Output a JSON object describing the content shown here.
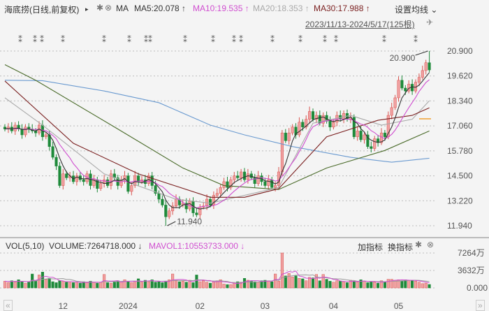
{
  "header": {
    "title": "海底捞(日线,前复权)",
    "arrow": "▸",
    "ma_label": "MA",
    "ma5": "MA5:20.078 ↑",
    "ma10": "MA10:19.535 ↑",
    "ma20": "MA20:18.353 ↑",
    "ma30": "MA30:17.988 ↑",
    "settings": "设置均线 ⌄",
    "range": "2023/11/13-2024/5/17(125根)"
  },
  "vol_header": {
    "label": "VOL(5,10)",
    "volume": "VOLUME:7264718.000 ↓",
    "mavol": "MAVOL1:10553733.000 ↓",
    "add": "加指标",
    "switch": "换指标"
  },
  "colors": {
    "up": "#f0a0a0",
    "up_border": "#d9534f",
    "down": "#1e8a3a",
    "ma5": "#333333",
    "ma10": "#d04fd0",
    "ma20": "#aaaaaa",
    "ma30": "#7a1f1f",
    "ma60": "#4a6b2a",
    "ma120": "#6a9ad0"
  },
  "nav": {
    "prev": "«",
    "next": "»"
  },
  "chart_data": {
    "type": "candlestick",
    "title": "海底捞(日线,前复权)",
    "ylim": [
      11.94,
      20.9
    ],
    "yticks": [
      "20.900",
      "19.620",
      "18.340",
      "17.060",
      "15.780",
      "14.500",
      "13.220",
      "11.940"
    ],
    "xticks": [
      {
        "label": "12",
        "index": 17
      },
      {
        "label": "2024",
        "index": 36
      },
      {
        "label": "02",
        "index": 57
      },
      {
        "label": "03",
        "index": 76
      },
      {
        "label": "04",
        "index": 96
      },
      {
        "label": "05",
        "index": 115
      }
    ],
    "annotations": {
      "high": "20.900",
      "high_index": 124,
      "low": "11.940",
      "low_index": 47
    },
    "closes": [
      16.9,
      17.0,
      16.8,
      17.1,
      16.9,
      16.6,
      17.0,
      16.9,
      16.8,
      16.7,
      17.1,
      16.5,
      16.6,
      16.0,
      15.45,
      15.0,
      14.0,
      14.6,
      14.4,
      14.5,
      14.2,
      14.5,
      14.3,
      14.2,
      14.6,
      14.0,
      14.3,
      13.85,
      14.1,
      14.3,
      14.0,
      14.6,
      14.4,
      14.0,
      14.3,
      14.5,
      13.7,
      14.0,
      14.5,
      14.2,
      14.3,
      14.1,
      14.5,
      14.0,
      13.6,
      13.3,
      13.0,
      12.4,
      12.7,
      12.95,
      13.3,
      13.0,
      13.1,
      12.8,
      13.2,
      12.6,
      12.5,
      12.9,
      12.95,
      13.3,
      13.0,
      13.5,
      13.6,
      13.9,
      14.2,
      13.9,
      14.3,
      14.5,
      14.4,
      14.7,
      14.3,
      14.6,
      14.4,
      14.1,
      14.5,
      14.2,
      14.0,
      14.3,
      13.9,
      14.0,
      14.7,
      16.7,
      16.3,
      16.7,
      17.0,
      16.6,
      17.25,
      17.0,
      17.4,
      17.8,
      17.4,
      17.6,
      17.2,
      17.6,
      17.3,
      17.0,
      17.25,
      17.6,
      17.4,
      17.7,
      17.4,
      17.5,
      16.5,
      16.8,
      16.35,
      16.6,
      16.0,
      15.9,
      16.4,
      16.2,
      16.7,
      16.5,
      17.6,
      18.0,
      18.5,
      19.4,
      19.0,
      18.85,
      19.2,
      18.85,
      19.3,
      19.55,
      19.9,
      20.3,
      19.93
    ],
    "ma_lines": {
      "ma20": [
        [
          0,
          18.5
        ],
        [
          11,
          17.1
        ],
        [
          29,
          14.6
        ],
        [
          50,
          13.3
        ],
        [
          60,
          13.1
        ],
        [
          80,
          13.9
        ],
        [
          90,
          17.2
        ],
        [
          101,
          17.6
        ],
        [
          110,
          17.1
        ],
        [
          119,
          17.4
        ],
        [
          124,
          18.35
        ]
      ],
      "ma30": [
        [
          0,
          19.36
        ],
        [
          20,
          16.17
        ],
        [
          39,
          14.6
        ],
        [
          60,
          13.4
        ],
        [
          70,
          13.4
        ],
        [
          80,
          13.84
        ],
        [
          94,
          16.5
        ],
        [
          109,
          17.35
        ],
        [
          119,
          17.6
        ],
        [
          124,
          17.99
        ]
      ],
      "ma60": [
        [
          0,
          20.2
        ],
        [
          9,
          19.4
        ],
        [
          33,
          16.9
        ],
        [
          52,
          14.9
        ],
        [
          64,
          14.0
        ],
        [
          80,
          13.8
        ],
        [
          94,
          14.9
        ],
        [
          111,
          15.8
        ],
        [
          124,
          16.8
        ]
      ],
      "ma120": [
        [
          0,
          19.4
        ],
        [
          11,
          19.38
        ],
        [
          29,
          18.85
        ],
        [
          45,
          18.25
        ],
        [
          60,
          17.1
        ],
        [
          70,
          16.6
        ],
        [
          84,
          16.0
        ],
        [
          101,
          15.45
        ],
        [
          113,
          15.2
        ],
        [
          124,
          15.4
        ]
      ]
    },
    "volume": {
      "unit": "万",
      "yticks": [
        "7264万",
        "3632万",
        "0.000"
      ],
      "max": 7264,
      "values": [
        1400,
        1100,
        1500,
        1200,
        1700,
        1300,
        1000,
        1200,
        2900,
        1400,
        2700,
        3300,
        1800,
        2000,
        1300,
        1100,
        1500,
        1400,
        1200,
        1300,
        1100,
        1200,
        1000,
        1300,
        1100,
        1400,
        1200,
        1000,
        1200,
        2800,
        1100,
        1000,
        1200,
        1500,
        1200,
        1700,
        1300,
        1100,
        1400,
        1900,
        1200,
        1600,
        1300,
        1700,
        1200,
        1300,
        1100,
        1400,
        1700,
        2900,
        1500,
        1300,
        1400,
        1200,
        1600,
        1100,
        2700,
        1300,
        1500,
        1200,
        1000,
        1300,
        1500,
        1700,
        800,
        700,
        700,
        1000,
        1300,
        1200,
        2000,
        1600,
        1400,
        1300,
        1200,
        1500,
        1600,
        1500,
        1300,
        2900,
        1400,
        7264,
        2500,
        3000,
        2300,
        2500,
        2000,
        1900,
        1500,
        2200,
        2100,
        2800,
        1500,
        2800,
        1800,
        1400,
        1200,
        1500,
        1400,
        1300,
        1100,
        1600,
        1400,
        1200,
        1700,
        1400,
        1100,
        1300,
        1200,
        1000,
        1500,
        1300,
        1800,
        1800,
        1600,
        1700,
        1500,
        1700,
        1600,
        1500,
        1400,
        1200,
        900,
        1000,
        726
      ]
    }
  }
}
